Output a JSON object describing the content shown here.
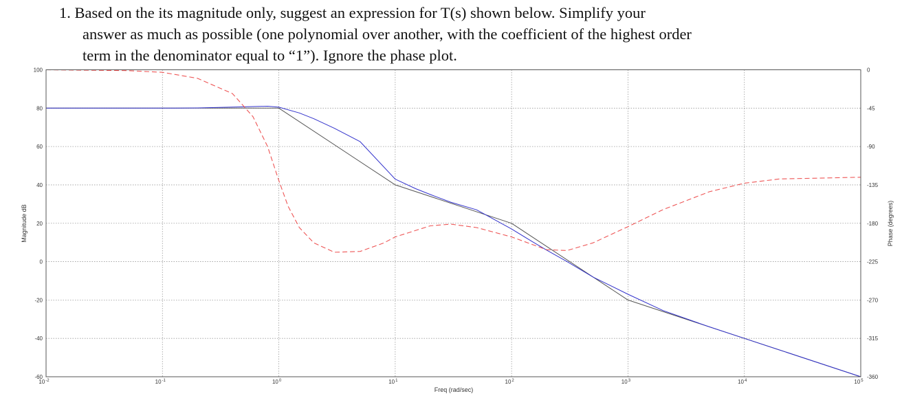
{
  "question": {
    "line1": "1.  Based on the its magnitude only, suggest an expression for T(s) shown below.  Simplify your",
    "line2": "answer as much as possible (one polynomial over another, with the coefficient of the highest order",
    "line3": "term in the denominator equal to “1”).  Ignore the phase plot."
  },
  "chart_data": {
    "type": "line",
    "xlabel": "Freq (rad/sec)",
    "ylabel": "Magnitude dB",
    "y2label": "Phase (degrees)",
    "xscale": "log",
    "xlim": [
      0.01,
      100000
    ],
    "ylim": [
      -60,
      100
    ],
    "y2lim": [
      -360,
      0
    ],
    "grid": true,
    "x_ticks": [
      {
        "base": "10",
        "exp": "-2"
      },
      {
        "base": "10",
        "exp": "-1"
      },
      {
        "base": "10",
        "exp": "0"
      },
      {
        "base": "10",
        "exp": "1"
      },
      {
        "base": "10",
        "exp": "2"
      },
      {
        "base": "10",
        "exp": "3"
      },
      {
        "base": "10",
        "exp": "4"
      },
      {
        "base": "10",
        "exp": "5"
      }
    ],
    "y_ticks": [
      "100",
      "80",
      "60",
      "40",
      "20",
      "0",
      "-20",
      "-40",
      "-60"
    ],
    "y2_ticks": [
      "0",
      "-45",
      "-90",
      "-135",
      "-180",
      "-225",
      "-270",
      "-315",
      "-360"
    ],
    "series": [
      {
        "role": "magnitude-asymptote",
        "axis": "left",
        "color": "#555555",
        "x": [
          0.01,
          1,
          10,
          100,
          1000,
          10000,
          100000
        ],
        "y": [
          80,
          80,
          40,
          20,
          -20,
          -40,
          -60
        ]
      },
      {
        "role": "magnitude",
        "axis": "left",
        "color": "#3333cc",
        "x": [
          0.01,
          0.1,
          0.2,
          0.5,
          0.8,
          1,
          1.5,
          2,
          3,
          5,
          10,
          15,
          20,
          30,
          50,
          100,
          150,
          200,
          300,
          500,
          1000,
          2000,
          5000,
          10000,
          100000
        ],
        "y": [
          80,
          80,
          80.1,
          80.7,
          81,
          80.5,
          77.5,
          74.5,
          69.5,
          62.5,
          43,
          38,
          35,
          31,
          27,
          17,
          10.5,
          6,
          0,
          -8,
          -17,
          -25.5,
          -34,
          -40,
          -60
        ]
      },
      {
        "role": "phase",
        "axis": "right",
        "color": "#ee5555",
        "dashed": true,
        "x": [
          0.01,
          0.05,
          0.1,
          0.2,
          0.4,
          0.6,
          0.8,
          1,
          1.2,
          1.5,
          2,
          3,
          5,
          8,
          10,
          20,
          30,
          50,
          100,
          200,
          300,
          500,
          1000,
          2000,
          5000,
          10000,
          20000,
          100000
        ],
        "y": [
          0,
          -1,
          -3,
          -10,
          -28,
          -55,
          -90,
          -130,
          -160,
          -185,
          -203,
          -214,
          -213,
          -203,
          -196,
          -183,
          -181,
          -185,
          -196,
          -211,
          -212,
          -203,
          -184,
          -164,
          -143,
          -133,
          -128,
          -126
        ]
      }
    ]
  }
}
